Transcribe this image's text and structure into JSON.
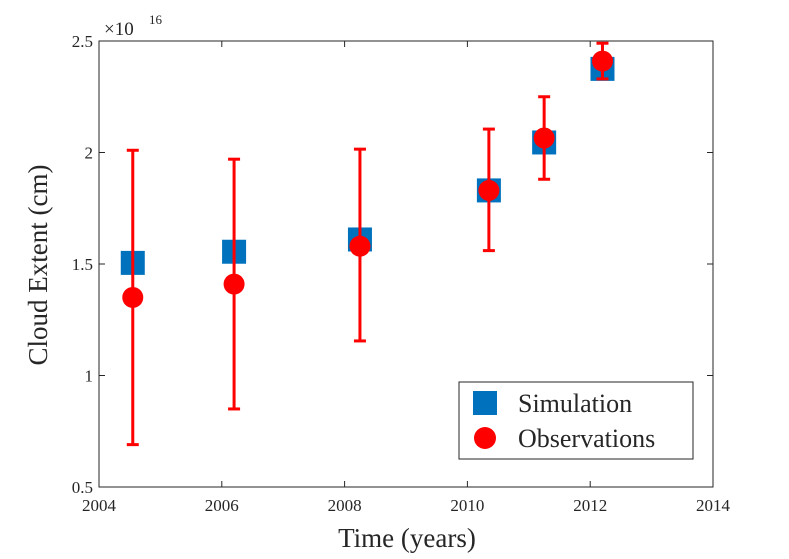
{
  "chart_data": {
    "type": "scatter",
    "title": "",
    "xlabel": "Time (years)",
    "ylabel": "Cloud Extent (cm)",
    "xlim": [
      2004,
      2014
    ],
    "ylim": [
      0.5,
      2.5
    ],
    "y_multiplier": {
      "base": "×10",
      "exponent": "16"
    },
    "xticks": [
      2004,
      2006,
      2008,
      2010,
      2012,
      2014
    ],
    "xtick_labels": [
      "2004",
      "2006",
      "2008",
      "2010",
      "2012",
      "2014"
    ],
    "yticks": [
      0.5,
      1,
      1.5,
      2,
      2.5
    ],
    "ytick_labels": [
      "0.5",
      "1",
      "1.5",
      "2",
      "2.5"
    ],
    "grid": false,
    "legend_position": "bottom-right",
    "series": [
      {
        "name": "Simulation",
        "marker": "square",
        "color": "#0072BD",
        "x": [
          2004.55,
          2006.2,
          2008.25,
          2010.35,
          2011.25,
          2012.2
        ],
        "y": [
          1.505,
          1.555,
          1.61,
          1.83,
          2.045,
          2.375
        ]
      },
      {
        "name": "Observations",
        "marker": "circle",
        "color": "#FF0000",
        "x": [
          2004.55,
          2006.2,
          2008.25,
          2010.35,
          2011.25,
          2012.2
        ],
        "y": [
          1.35,
          1.41,
          1.58,
          1.83,
          2.065,
          2.41
        ],
        "err_low": [
          0.69,
          0.85,
          1.155,
          1.56,
          1.88,
          2.33
        ],
        "err_high": [
          2.01,
          1.97,
          2.015,
          2.105,
          2.25,
          2.49
        ]
      }
    ]
  }
}
